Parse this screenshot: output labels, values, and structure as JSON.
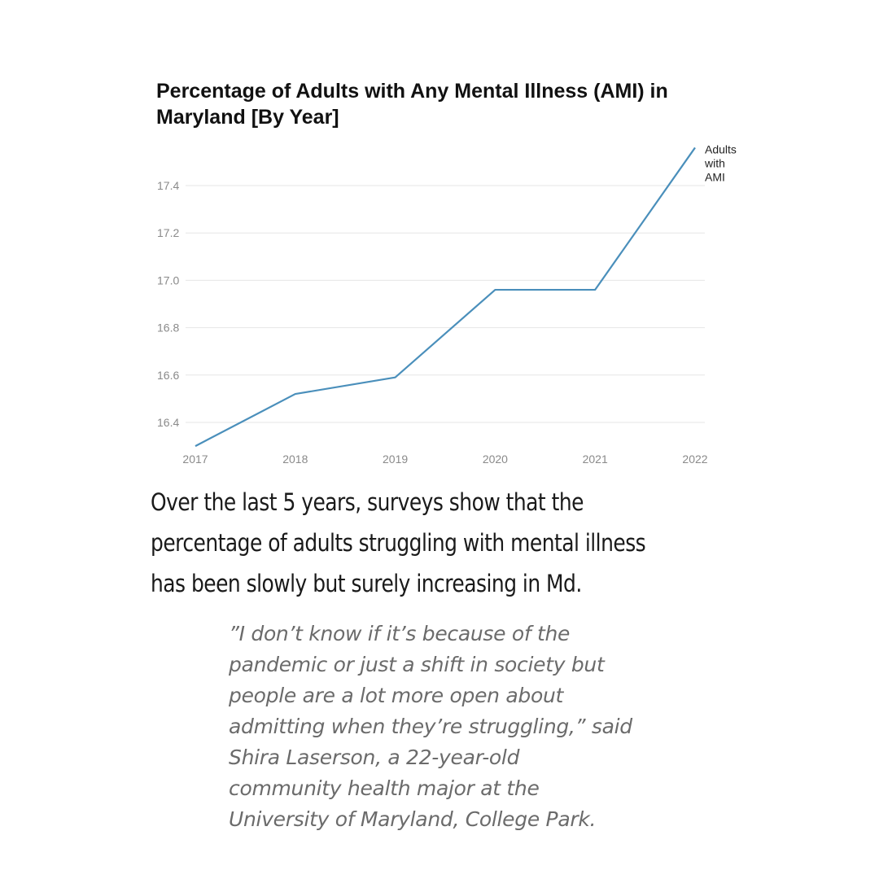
{
  "chart_data": {
    "type": "line",
    "title": "Percentage of Adults with Any Mental Illness (AMI) in Maryland [By Year]",
    "xlabel": "",
    "ylabel": "",
    "x": [
      "2017",
      "2018",
      "2019",
      "2020",
      "2021",
      "2022"
    ],
    "ylim": [
      16.3,
      17.6
    ],
    "yticks": [
      "16.4",
      "16.6",
      "16.8",
      "17.0",
      "17.2",
      "17.4"
    ],
    "grid": true,
    "series": [
      {
        "name": "Adults with AMI",
        "name_lines": [
          "Adults",
          "with",
          "AMI"
        ],
        "values": [
          16.3,
          16.52,
          16.59,
          16.96,
          16.96,
          17.56
        ],
        "color": "#4a8fbb"
      }
    ]
  },
  "article": {
    "body": "Over the last 5 years, surveys show that the percentage of adults struggling with mental illness has been slowly but surely increasing in Md.",
    "quote": "”I don’t know if it’s because of the pandemic or just a shift in society but people are a lot more open about admitting when they’re struggling,” said Shira Laserson, a 22-year-old community health major at the University of Maryland, College Park."
  },
  "colors": {
    "line": "#4a8fbb",
    "grid": "#e6e6e6",
    "tick_text": "#8a8a8a",
    "title_text": "#111111",
    "quote_text": "#6b6b6b"
  }
}
